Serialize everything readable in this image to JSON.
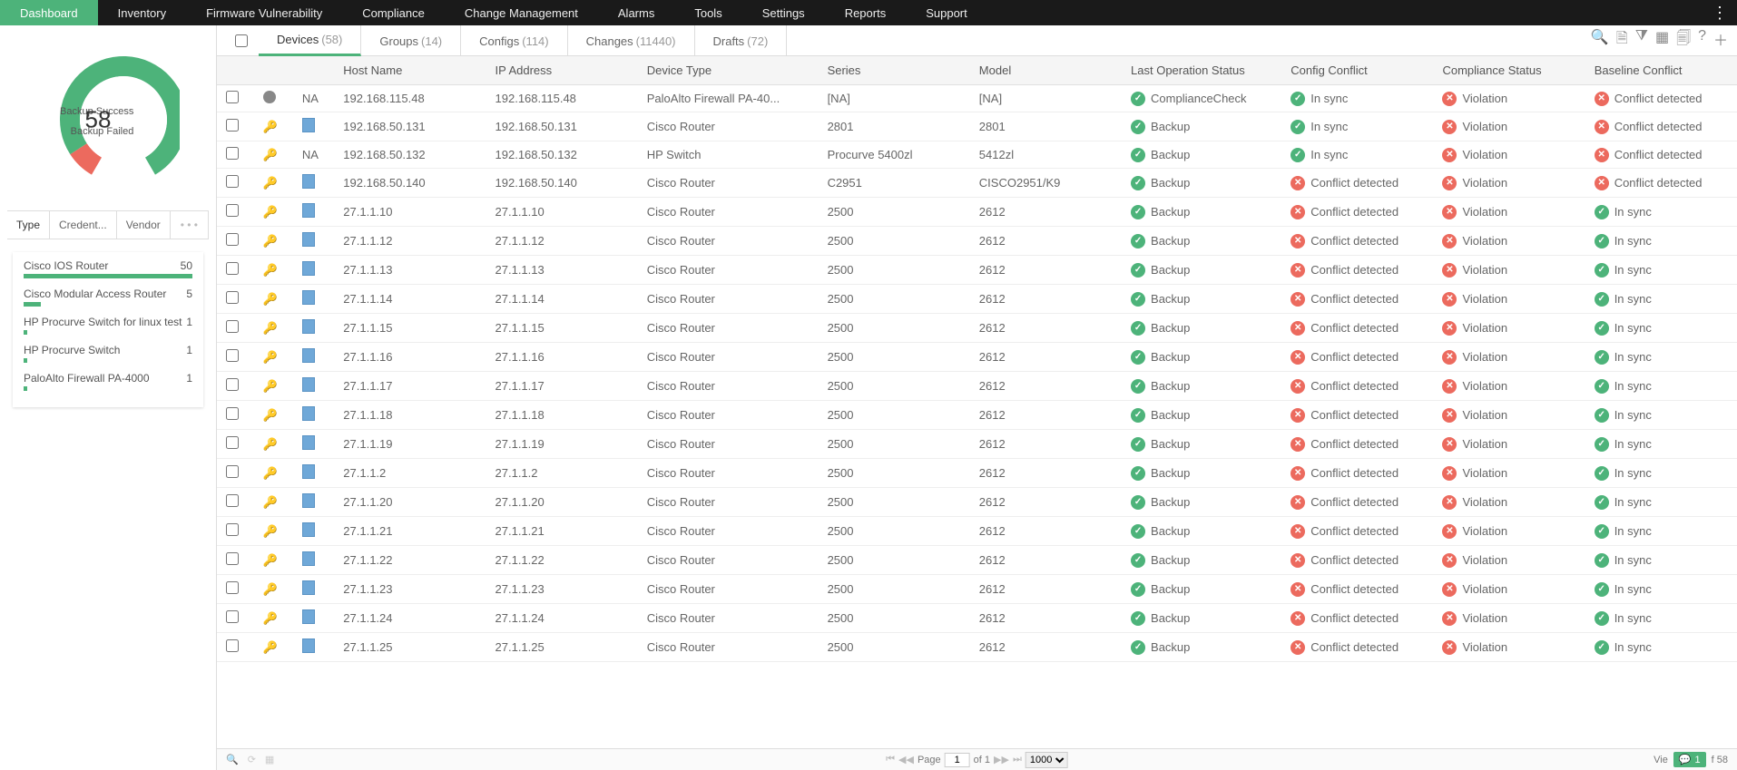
{
  "nav": {
    "items": [
      "Dashboard",
      "Inventory",
      "Firmware Vulnerability",
      "Compliance",
      "Change Management",
      "Alarms",
      "Tools",
      "Settings",
      "Reports",
      "Support"
    ],
    "active": 0
  },
  "donut": {
    "total": "58",
    "success_label": "Backup Success",
    "failed_label": "Backup Failed",
    "success_pct": 91,
    "colors": {
      "success": "#4db37a",
      "failed": "#ec6a5e",
      "track": "#eeeeee"
    }
  },
  "sidebarTabs": {
    "items": [
      "Type",
      "Credent...",
      "Vendor"
    ],
    "active": 0,
    "more": "• • •"
  },
  "typeList": [
    {
      "label": "Cisco IOS Router",
      "count": "50",
      "pct": 100
    },
    {
      "label": "Cisco Modular Access Router",
      "count": "5",
      "pct": 10
    },
    {
      "label": "HP Procurve Switch for linux test",
      "count": "1",
      "pct": 2
    },
    {
      "label": "HP Procurve Switch",
      "count": "1",
      "pct": 2
    },
    {
      "label": "PaloAlto Firewall PA-4000",
      "count": "1",
      "pct": 2
    }
  ],
  "tabs": [
    {
      "label": "Devices",
      "count": "(58)",
      "active": true
    },
    {
      "label": "Groups",
      "count": "(14)"
    },
    {
      "label": "Configs",
      "count": "(114)"
    },
    {
      "label": "Changes",
      "count": "(11440)"
    },
    {
      "label": "Drafts",
      "count": "(72)"
    }
  ],
  "columns": [
    "",
    "",
    "",
    "Host Name",
    "IP Address",
    "Device Type",
    "Series",
    "Model",
    "Last Operation Status",
    "Config Conflict",
    "Compliance Status",
    "Baseline Conflict"
  ],
  "rows": [
    {
      "i1": "circle",
      "i2": "NA",
      "host": "192.168.115.48",
      "ip": "192.168.115.48",
      "dev": "PaloAlto Firewall PA-40...",
      "ser": "[NA]",
      "mod": "[NA]",
      "op": {
        "s": "ok",
        "t": "ComplianceCheck"
      },
      "conf": {
        "s": "ok",
        "t": "In sync"
      },
      "comp": {
        "s": "err",
        "t": "Violation"
      },
      "base": {
        "s": "err",
        "t": "Conflict detected"
      }
    },
    {
      "i1": "key",
      "i2": "doc",
      "host": "192.168.50.131",
      "ip": "192.168.50.131",
      "dev": "Cisco Router",
      "ser": "2801",
      "mod": "2801",
      "op": {
        "s": "ok",
        "t": "Backup"
      },
      "conf": {
        "s": "ok",
        "t": "In sync"
      },
      "comp": {
        "s": "err",
        "t": "Violation"
      },
      "base": {
        "s": "err",
        "t": "Conflict detected"
      }
    },
    {
      "i1": "key",
      "i2": "NA",
      "host": "192.168.50.132",
      "ip": "192.168.50.132",
      "dev": "HP Switch",
      "ser": "Procurve 5400zl",
      "mod": "5412zl",
      "op": {
        "s": "ok",
        "t": "Backup"
      },
      "conf": {
        "s": "ok",
        "t": "In sync"
      },
      "comp": {
        "s": "err",
        "t": "Violation"
      },
      "base": {
        "s": "err",
        "t": "Conflict detected"
      }
    },
    {
      "i1": "key",
      "i2": "doc",
      "host": "192.168.50.140",
      "ip": "192.168.50.140",
      "dev": "Cisco Router",
      "ser": "C2951",
      "mod": "CISCO2951/K9",
      "op": {
        "s": "ok",
        "t": "Backup"
      },
      "conf": {
        "s": "err",
        "t": "Conflict detected"
      },
      "comp": {
        "s": "err",
        "t": "Violation"
      },
      "base": {
        "s": "err",
        "t": "Conflict detected"
      }
    },
    {
      "i1": "key",
      "i2": "doc",
      "host": "27.1.1.10",
      "ip": "27.1.1.10",
      "dev": "Cisco Router",
      "ser": "2500",
      "mod": "2612",
      "op": {
        "s": "ok",
        "t": "Backup"
      },
      "conf": {
        "s": "err",
        "t": "Conflict detected"
      },
      "comp": {
        "s": "err",
        "t": "Violation"
      },
      "base": {
        "s": "ok",
        "t": "In sync"
      }
    },
    {
      "i1": "key",
      "i2": "doc",
      "host": "27.1.1.12",
      "ip": "27.1.1.12",
      "dev": "Cisco Router",
      "ser": "2500",
      "mod": "2612",
      "op": {
        "s": "ok",
        "t": "Backup"
      },
      "conf": {
        "s": "err",
        "t": "Conflict detected"
      },
      "comp": {
        "s": "err",
        "t": "Violation"
      },
      "base": {
        "s": "ok",
        "t": "In sync"
      }
    },
    {
      "i1": "key",
      "i2": "doc",
      "host": "27.1.1.13",
      "ip": "27.1.1.13",
      "dev": "Cisco Router",
      "ser": "2500",
      "mod": "2612",
      "op": {
        "s": "ok",
        "t": "Backup"
      },
      "conf": {
        "s": "err",
        "t": "Conflict detected"
      },
      "comp": {
        "s": "err",
        "t": "Violation"
      },
      "base": {
        "s": "ok",
        "t": "In sync"
      }
    },
    {
      "i1": "key",
      "i2": "doc",
      "host": "27.1.1.14",
      "ip": "27.1.1.14",
      "dev": "Cisco Router",
      "ser": "2500",
      "mod": "2612",
      "op": {
        "s": "ok",
        "t": "Backup"
      },
      "conf": {
        "s": "err",
        "t": "Conflict detected"
      },
      "comp": {
        "s": "err",
        "t": "Violation"
      },
      "base": {
        "s": "ok",
        "t": "In sync"
      }
    },
    {
      "i1": "key",
      "i2": "doc",
      "host": "27.1.1.15",
      "ip": "27.1.1.15",
      "dev": "Cisco Router",
      "ser": "2500",
      "mod": "2612",
      "op": {
        "s": "ok",
        "t": "Backup"
      },
      "conf": {
        "s": "err",
        "t": "Conflict detected"
      },
      "comp": {
        "s": "err",
        "t": "Violation"
      },
      "base": {
        "s": "ok",
        "t": "In sync"
      }
    },
    {
      "i1": "key",
      "i2": "doc",
      "host": "27.1.1.16",
      "ip": "27.1.1.16",
      "dev": "Cisco Router",
      "ser": "2500",
      "mod": "2612",
      "op": {
        "s": "ok",
        "t": "Backup"
      },
      "conf": {
        "s": "err",
        "t": "Conflict detected"
      },
      "comp": {
        "s": "err",
        "t": "Violation"
      },
      "base": {
        "s": "ok",
        "t": "In sync"
      }
    },
    {
      "i1": "key",
      "i2": "doc",
      "host": "27.1.1.17",
      "ip": "27.1.1.17",
      "dev": "Cisco Router",
      "ser": "2500",
      "mod": "2612",
      "op": {
        "s": "ok",
        "t": "Backup"
      },
      "conf": {
        "s": "err",
        "t": "Conflict detected"
      },
      "comp": {
        "s": "err",
        "t": "Violation"
      },
      "base": {
        "s": "ok",
        "t": "In sync"
      }
    },
    {
      "i1": "key",
      "i2": "doc",
      "host": "27.1.1.18",
      "ip": "27.1.1.18",
      "dev": "Cisco Router",
      "ser": "2500",
      "mod": "2612",
      "op": {
        "s": "ok",
        "t": "Backup"
      },
      "conf": {
        "s": "err",
        "t": "Conflict detected"
      },
      "comp": {
        "s": "err",
        "t": "Violation"
      },
      "base": {
        "s": "ok",
        "t": "In sync"
      }
    },
    {
      "i1": "key",
      "i2": "doc",
      "host": "27.1.1.19",
      "ip": "27.1.1.19",
      "dev": "Cisco Router",
      "ser": "2500",
      "mod": "2612",
      "op": {
        "s": "ok",
        "t": "Backup"
      },
      "conf": {
        "s": "err",
        "t": "Conflict detected"
      },
      "comp": {
        "s": "err",
        "t": "Violation"
      },
      "base": {
        "s": "ok",
        "t": "In sync"
      }
    },
    {
      "i1": "key",
      "i2": "doc",
      "host": "27.1.1.2",
      "ip": "27.1.1.2",
      "dev": "Cisco Router",
      "ser": "2500",
      "mod": "2612",
      "op": {
        "s": "ok",
        "t": "Backup"
      },
      "conf": {
        "s": "err",
        "t": "Conflict detected"
      },
      "comp": {
        "s": "err",
        "t": "Violation"
      },
      "base": {
        "s": "ok",
        "t": "In sync"
      }
    },
    {
      "i1": "key",
      "i2": "doc",
      "host": "27.1.1.20",
      "ip": "27.1.1.20",
      "dev": "Cisco Router",
      "ser": "2500",
      "mod": "2612",
      "op": {
        "s": "ok",
        "t": "Backup"
      },
      "conf": {
        "s": "err",
        "t": "Conflict detected"
      },
      "comp": {
        "s": "err",
        "t": "Violation"
      },
      "base": {
        "s": "ok",
        "t": "In sync"
      }
    },
    {
      "i1": "key",
      "i2": "doc",
      "host": "27.1.1.21",
      "ip": "27.1.1.21",
      "dev": "Cisco Router",
      "ser": "2500",
      "mod": "2612",
      "op": {
        "s": "ok",
        "t": "Backup"
      },
      "conf": {
        "s": "err",
        "t": "Conflict detected"
      },
      "comp": {
        "s": "err",
        "t": "Violation"
      },
      "base": {
        "s": "ok",
        "t": "In sync"
      }
    },
    {
      "i1": "key",
      "i2": "doc",
      "host": "27.1.1.22",
      "ip": "27.1.1.22",
      "dev": "Cisco Router",
      "ser": "2500",
      "mod": "2612",
      "op": {
        "s": "ok",
        "t": "Backup"
      },
      "conf": {
        "s": "err",
        "t": "Conflict detected"
      },
      "comp": {
        "s": "err",
        "t": "Violation"
      },
      "base": {
        "s": "ok",
        "t": "In sync"
      }
    },
    {
      "i1": "key",
      "i2": "doc",
      "host": "27.1.1.23",
      "ip": "27.1.1.23",
      "dev": "Cisco Router",
      "ser": "2500",
      "mod": "2612",
      "op": {
        "s": "ok",
        "t": "Backup"
      },
      "conf": {
        "s": "err",
        "t": "Conflict detected"
      },
      "comp": {
        "s": "err",
        "t": "Violation"
      },
      "base": {
        "s": "ok",
        "t": "In sync"
      }
    },
    {
      "i1": "key",
      "i2": "doc",
      "host": "27.1.1.24",
      "ip": "27.1.1.24",
      "dev": "Cisco Router",
      "ser": "2500",
      "mod": "2612",
      "op": {
        "s": "ok",
        "t": "Backup"
      },
      "conf": {
        "s": "err",
        "t": "Conflict detected"
      },
      "comp": {
        "s": "err",
        "t": "Violation"
      },
      "base": {
        "s": "ok",
        "t": "In sync"
      }
    },
    {
      "i1": "key",
      "i2": "doc",
      "host": "27.1.1.25",
      "ip": "27.1.1.25",
      "dev": "Cisco Router",
      "ser": "2500",
      "mod": "2612",
      "op": {
        "s": "ok",
        "t": "Backup"
      },
      "conf": {
        "s": "err",
        "t": "Conflict detected"
      },
      "comp": {
        "s": "err",
        "t": "Violation"
      },
      "base": {
        "s": "ok",
        "t": "In sync"
      }
    }
  ],
  "footer": {
    "page_label": "Page",
    "page": "1",
    "of": "of 1",
    "pagesize": "1000",
    "right_prefix": "Vie",
    "right_suffix": "f 58",
    "badge": "1"
  }
}
